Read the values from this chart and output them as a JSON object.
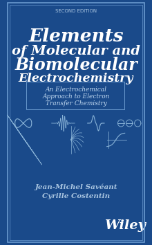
{
  "bg_color": "#1a4a8a",
  "border_color_outer": "#4a7abf",
  "border_color_inner": "#6a9acf",
  "text_color_white": "#ffffff",
  "text_color_light": "#a8c4e0",
  "text_color_subtitle": "#c0d8f0",
  "edition_text": "SECOND EDITION",
  "title_line1": "Elements",
  "title_line2": "of Molecular and",
  "title_line3": "Biomolecular",
  "title_line4": "Electrochemistry",
  "subtitle_line1": "An Electrochemical",
  "subtitle_line2": "Approach to Electron",
  "subtitle_line3": "Transfer Chemistry",
  "author1": "Jean-Michel Savéant",
  "author2": "Cyrille Costentin",
  "publisher": "Wiley",
  "curve_color": "#8ab4d8"
}
